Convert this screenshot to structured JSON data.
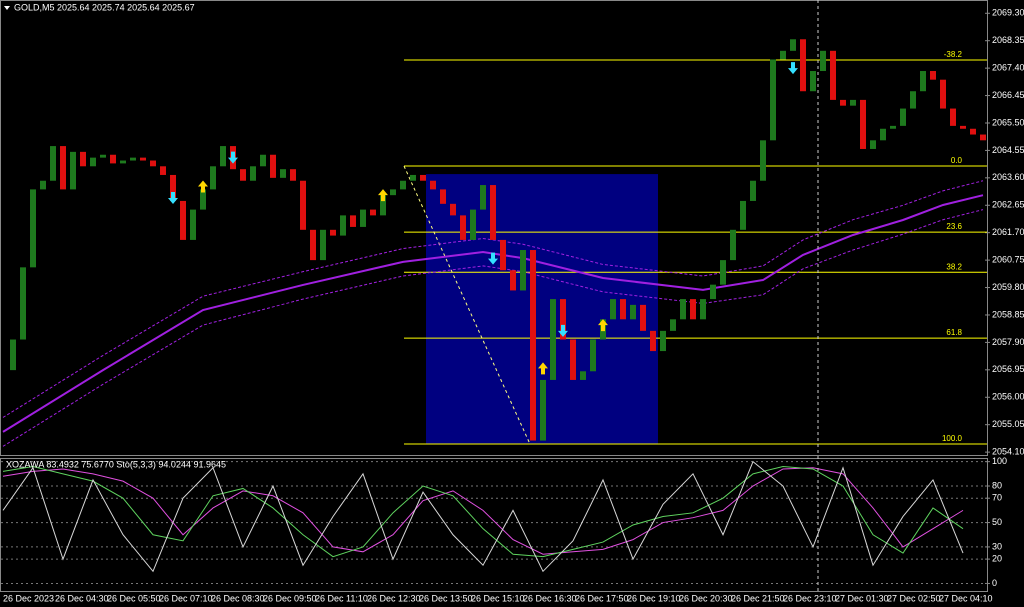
{
  "chart_data": [
    {
      "type": "price",
      "title": "GOLD,M5  2025.64 2025.74 2025.64 2025.67",
      "up_color": "#1e7a1e",
      "down_color": "#e01010",
      "values": [
        2056.94,
        2058.0,
        2060.5,
        2063.2,
        2063.5,
        2064.7,
        2063.2,
        2064.5,
        2064.0,
        2064.3,
        2064.4,
        2064.1,
        2064.2,
        2064.3,
        2064.2,
        2064.0,
        2063.7,
        2062.8,
        2061.45,
        2062.5,
        2063.2,
        2064.0,
        2064.7,
        2063.9,
        2063.5,
        2064.0,
        2064.4,
        2063.6,
        2063.9,
        2063.5,
        2061.8,
        2060.75,
        2061.8,
        2061.6,
        2062.3,
        2061.9,
        2062.5,
        2062.3,
        2063.0,
        2063.2,
        2063.5,
        2063.7,
        2063.5,
        2063.2,
        2062.7,
        2062.3,
        2061.45,
        2062.5,
        2063.35,
        2061.45,
        2060.4,
        2059.7,
        2061.1,
        2054.5,
        2056.6,
        2059.4,
        2058.0,
        2056.6,
        2056.9,
        2058.0,
        2058.7,
        2059.4,
        2058.7,
        2059.2,
        2058.3,
        2057.6,
        2058.3,
        2058.7,
        2059.4,
        2058.7,
        2059.4,
        2059.9,
        2060.75,
        2061.8,
        2062.8,
        2063.5,
        2064.9,
        2067.7,
        2068.0,
        2068.4,
        2066.6,
        2067.3,
        2068.0,
        2066.3,
        2066.1,
        2066.3,
        2064.6,
        2064.9,
        2065.3,
        2065.4,
        2066.0,
        2066.6,
        2067.3,
        2067.0,
        2066.0,
        2065.4,
        2065.3,
        2065.1,
        2064.9
      ],
      "ylim": [
        2054.0,
        2069.76
      ],
      "yticks": [
        {
          "value": 2069.3,
          "label": "2069.30"
        },
        2068.35,
        {
          "value": 2067.4,
          "label": "2067.40"
        },
        2066.45,
        {
          "value": 2065.5,
          "label": "2065.50"
        },
        2064.55,
        {
          "value": 2063.6,
          "label": "2063.60"
        },
        2062.65,
        {
          "value": 2061.7,
          "label": "2061.70"
        },
        2060.75,
        {
          "value": 2059.8,
          "label": "2059.80"
        },
        2058.85,
        {
          "value": 2057.9,
          "label": "2057.90"
        },
        2056.95,
        {
          "value": 2056,
          "label": "2056.00"
        },
        2055.05,
        {
          "value": 2054.1,
          "label": "2054.10"
        }
      ],
      "x_labels": [
        "26 Dec 2023",
        "26 Dec 04:30",
        "26 Dec 05:50",
        "26 Dec 07:10",
        "26 Dec 08:30",
        "26 Dec 09:50",
        "26 Dec 11:10",
        "26 Dec 12:30",
        "26 Dec 13:50",
        "26 Dec 15:10",
        "26 Dec 16:30",
        "26 Dec 17:50",
        "26 Dec 19:10",
        "26 Dec 20:30",
        "26 Dec 21:50",
        "26 Dec 23:10",
        "27 Dec 01:30",
        "27 Dec 02:50",
        "27 Dec 04:10"
      ],
      "ma": {
        "color": "#a020e0",
        "x": [
          0,
          10,
          20,
          30,
          40,
          48,
          52,
          60,
          70,
          76,
          80,
          85,
          90,
          94,
          98
        ],
        "values": [
          2054.8,
          2056.94,
          2059.02,
          2059.89,
          2060.69,
          2061.03,
          2060.82,
          2060.13,
          2059.72,
          2060.06,
          2060.93,
          2061.62,
          2062.14,
          2062.66,
          2063.0
        ],
        "upper": [
          2055.3,
          2057.45,
          2059.5,
          2060.35,
          2061.15,
          2061.5,
          2061.3,
          2060.6,
          2060.2,
          2060.55,
          2061.45,
          2062.15,
          2062.65,
          2063.15,
          2063.5
        ],
        "lower": [
          2054.3,
          2056.45,
          2058.5,
          2059.4,
          2060.2,
          2060.55,
          2060.35,
          2059.65,
          2059.25,
          2059.55,
          2060.45,
          2061.1,
          2061.65,
          2062.15,
          2062.5
        ]
      },
      "fibonacci": {
        "color": "#ffff00",
        "levels": [
          {
            "value": 2067.68,
            "label": "-38.2"
          },
          {
            "value": 2064.01,
            "label": "0.0"
          },
          {
            "value": 2061.72,
            "label": "23.6"
          },
          {
            "value": 2060.33,
            "label": "38.2"
          },
          {
            "value": 2058.05,
            "label": "61.8"
          },
          {
            "value": 2054.38,
            "label": "100.0"
          }
        ]
      },
      "box": {
        "color": "#000080",
        "ylim": [
          2054.38,
          2063.73
        ]
      },
      "signals": {
        "up": {
          "color": "#ffd700",
          "x": [
            20,
            38,
            54,
            60
          ],
          "values": [
            2063.3,
            2063.0,
            2057.0,
            2058.5
          ]
        },
        "down": {
          "color": "#33e0ff",
          "x": [
            17,
            23,
            49,
            56,
            79
          ],
          "values": [
            2062.9,
            2064.3,
            2060.8,
            2058.3,
            2067.4
          ]
        }
      }
    },
    {
      "type": "line",
      "title": "XOZAWA 83.4932 75.6770  Sto(5,3,3) 94.0244 91.9645",
      "x": [
        0,
        3,
        6,
        9,
        12,
        15,
        18,
        21,
        24,
        27,
        30,
        33,
        36,
        39,
        42,
        45,
        48,
        51,
        54,
        57,
        60,
        63,
        66,
        69,
        72,
        75,
        78,
        81,
        84,
        87,
        90,
        93,
        96
      ],
      "series": [
        {
          "color": "#e050e0",
          "values": [
            88,
            92,
            94,
            90,
            84,
            70,
            40,
            62,
            76,
            72,
            58,
            30,
            26,
            40,
            68,
            76,
            60,
            36,
            24,
            26,
            28,
            36,
            50,
            54,
            60,
            80,
            94,
            95,
            90,
            62,
            30,
            45,
            60
          ]
        },
        {
          "color": "#5fd35f",
          "values": [
            92,
            96,
            90,
            84,
            70,
            40,
            35,
            72,
            78,
            62,
            40,
            22,
            30,
            58,
            80,
            72,
            45,
            24,
            22,
            28,
            34,
            48,
            55,
            58,
            70,
            90,
            96,
            94,
            80,
            40,
            25,
            62,
            45
          ]
        },
        {
          "color": "#d8d8d8",
          "values": [
            60,
            95,
            20,
            85,
            40,
            10,
            70,
            95,
            30,
            80,
            15,
            55,
            90,
            20,
            75,
            40,
            15,
            60,
            10,
            35,
            85,
            20,
            65,
            90,
            40,
            100,
            80,
            30,
            95,
            15,
            55,
            85,
            25
          ]
        }
      ],
      "ylim": [
        -7,
        103
      ],
      "yticks": [
        100,
        80,
        70,
        50,
        30,
        20,
        0
      ],
      "grid": true
    }
  ]
}
